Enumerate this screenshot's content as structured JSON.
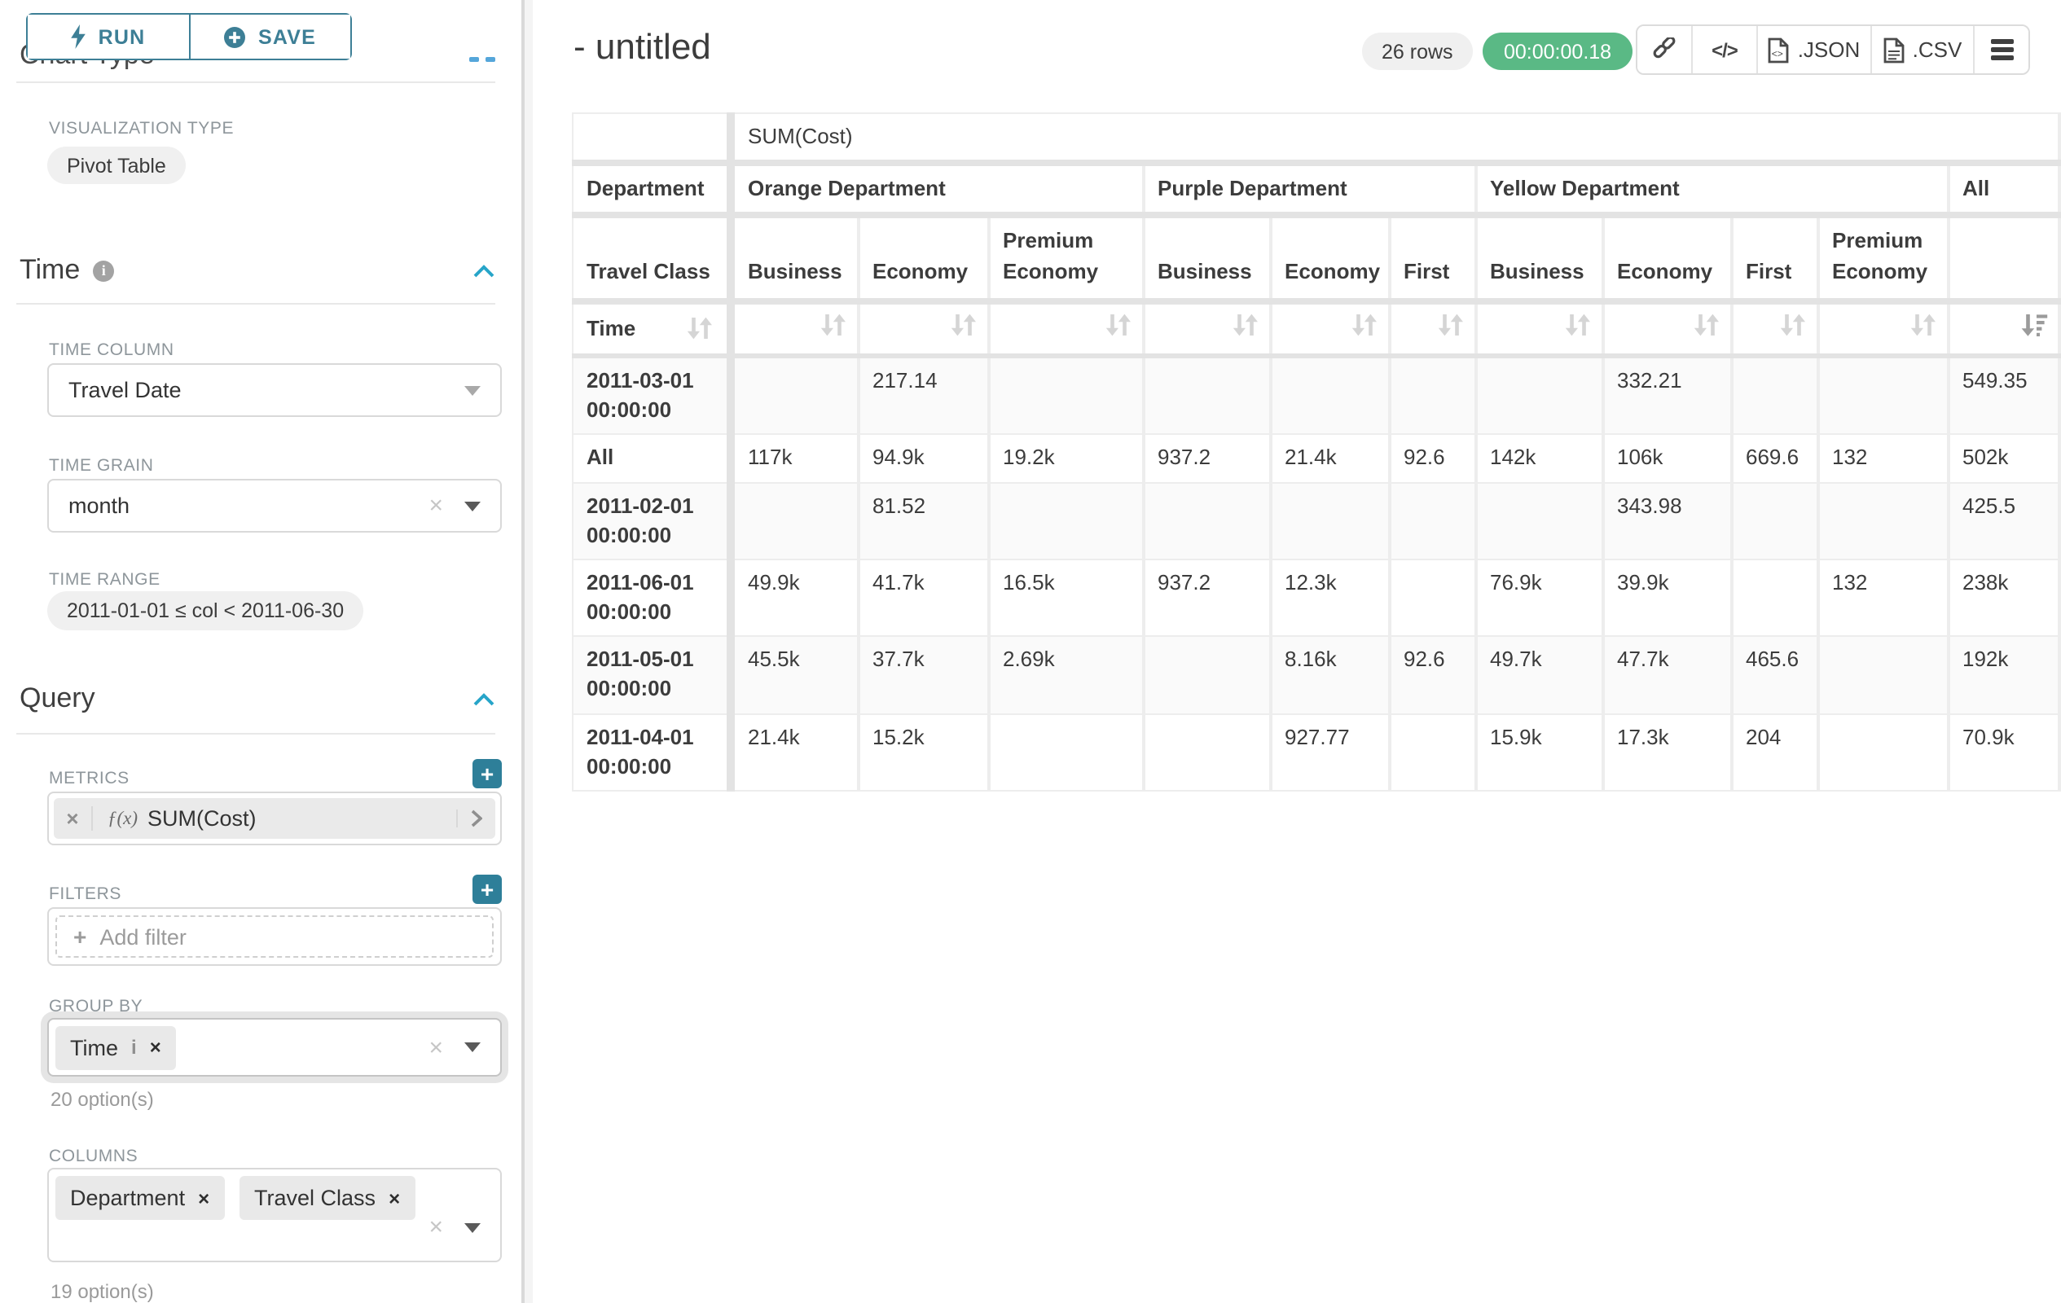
{
  "toolbar": {
    "run_label": "RUN",
    "save_label": "SAVE"
  },
  "icons": {
    "close_x": "×",
    "clear_x": "×",
    "plus": "+",
    "info": "i",
    "code": "</>"
  },
  "sidebar": {
    "chart_type_heading": "Chart Type",
    "viz_type_label": "VISUALIZATION TYPE",
    "viz_type_value": "Pivot Table",
    "time": {
      "title": "Time",
      "time_column_label": "TIME COLUMN",
      "time_column_value": "Travel Date",
      "time_grain_label": "TIME GRAIN",
      "time_grain_value": "month",
      "time_range_label": "TIME RANGE",
      "time_range_value": "2011-01-01 ≤ col < 2011-06-30"
    },
    "query": {
      "title": "Query",
      "metrics_label": "METRICS",
      "metric_prefix": "ƒ(x)",
      "metric_value": "SUM(Cost)",
      "filters_label": "FILTERS",
      "add_filter_label": "Add filter",
      "group_by_label": "GROUP BY",
      "group_by_pill": "Time",
      "group_by_hint": "20 option(s)",
      "columns_label": "COLUMNS",
      "columns_pills": [
        "Department",
        "Travel Class"
      ],
      "columns_hint": "19 option(s)"
    }
  },
  "header": {
    "title": "- untitled",
    "row_count": "26 rows",
    "timer": "00:00:00.18",
    "json_label": ".JSON",
    "csv_label": ".CSV"
  },
  "chart_data": {
    "type": "table",
    "title": "SUM(Cost) pivot table",
    "metric": "SUM(Cost)",
    "row_dimension": "Time",
    "col_dimension_labels": {
      "department": "Department",
      "travel_class": "Travel Class"
    },
    "sorted_column": "All",
    "sort_direction": "desc",
    "column_groups": [
      {
        "department": "Orange Department",
        "classes": [
          "Business",
          "Economy",
          "Premium Economy"
        ]
      },
      {
        "department": "Purple Department",
        "classes": [
          "Business",
          "Economy",
          "First"
        ]
      },
      {
        "department": "Yellow Department",
        "classes": [
          "Business",
          "Economy",
          "First",
          "Premium Economy"
        ]
      },
      {
        "department": "All",
        "classes": [
          ""
        ]
      }
    ],
    "rows": [
      {
        "label": "2011-03-01 00:00:00",
        "values": [
          "",
          "217.14",
          "",
          "",
          "",
          "",
          "",
          "332.21",
          "",
          "",
          "549.35"
        ]
      },
      {
        "label": "All",
        "values": [
          "117k",
          "94.9k",
          "19.2k",
          "937.2",
          "21.4k",
          "92.6",
          "142k",
          "106k",
          "669.6",
          "132",
          "502k"
        ]
      },
      {
        "label": "2011-02-01 00:00:00",
        "values": [
          "",
          "81.52",
          "",
          "",
          "",
          "",
          "",
          "343.98",
          "",
          "",
          "425.5"
        ]
      },
      {
        "label": "2011-06-01 00:00:00",
        "values": [
          "49.9k",
          "41.7k",
          "16.5k",
          "937.2",
          "12.3k",
          "",
          "76.9k",
          "39.9k",
          "",
          "132",
          "238k"
        ]
      },
      {
        "label": "2011-05-01 00:00:00",
        "values": [
          "45.5k",
          "37.7k",
          "2.69k",
          "",
          "8.16k",
          "92.6",
          "49.7k",
          "47.7k",
          "465.6",
          "",
          "192k"
        ]
      },
      {
        "label": "2011-04-01 00:00:00",
        "values": [
          "21.4k",
          "15.2k",
          "",
          "",
          "927.77",
          "",
          "15.9k",
          "17.3k",
          "204",
          "",
          "70.9k"
        ]
      }
    ]
  }
}
